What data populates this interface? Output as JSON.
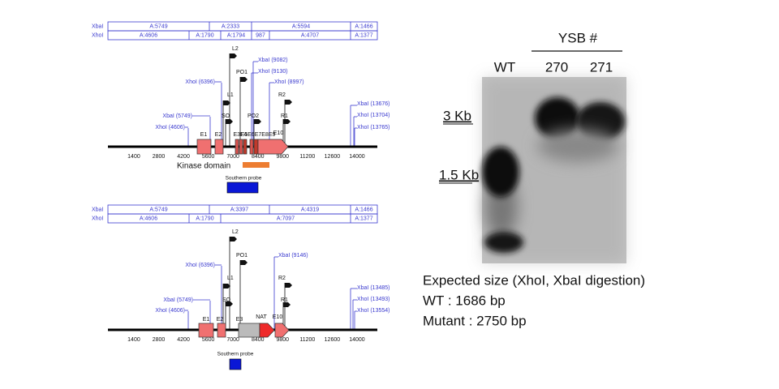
{
  "maps": [
    {
      "restriction_table": {
        "rows": [
          {
            "enzyme": "XbaI",
            "fragments": [
              "A:5749",
              "A:2333",
              "A:5594",
              "A:1466"
            ]
          },
          {
            "enzyme": "XhoI",
            "fragments": [
              "A:4606",
              "A:1790",
              "A:1794",
              "987",
              "A:4707",
              "A:1377"
            ]
          }
        ]
      },
      "sites": [
        "L2",
        "XbaI (9082)",
        "PO1",
        "XhoI (9130)",
        "XhoI (6396)",
        "XhoI (8997)",
        "L1",
        "R2",
        "XbaI (5749)",
        "SO",
        "PO2",
        "R1",
        "XhoI (4606)",
        "XbaI (13676)",
        "XhoI (13704)",
        "XhoI (13765)"
      ],
      "exons": [
        "E1",
        "E2",
        "E3E4",
        "E5E6E7E8E9",
        "E10"
      ],
      "axis_ticks": [
        1400,
        2800,
        4200,
        5600,
        7000,
        8400,
        9800,
        11200,
        12600,
        14000
      ],
      "domain_label": "Kinase domain",
      "probe_label": "Southern probe"
    },
    {
      "restriction_table": {
        "rows": [
          {
            "enzyme": "XbaI",
            "fragments": [
              "A:5749",
              "A:3397",
              "A:4319",
              "A:1466"
            ]
          },
          {
            "enzyme": "XhoI",
            "fragments": [
              "A:4606",
              "A:1790",
              "A:7097",
              "A:1377"
            ]
          }
        ]
      },
      "sites": [
        "L2",
        "PO1",
        "XhoI (6396)",
        "XbaI (9146)",
        "L1",
        "R2",
        "SO",
        "R1",
        "XbaI (5749)",
        "XhoI (4606)",
        "XbaI (13485)",
        "XhoI (13493)",
        "XhoI (13554)"
      ],
      "exons": [
        "E1",
        "E2",
        "E3",
        "NAT",
        "E10"
      ],
      "axis_ticks": [
        1400,
        2800,
        4200,
        5600,
        7000,
        8400,
        9800,
        11200,
        12600,
        14000
      ],
      "probe_label": "Southern probe"
    }
  ],
  "blot": {
    "group_label": "YSB #",
    "lanes": [
      "WT",
      "270",
      "271"
    ],
    "markers": [
      "3 Kb",
      "1.5 Kb"
    ]
  },
  "caption": {
    "title": "Expected size (XhoI, XbaI digestion)",
    "lines": [
      "WT : 1686 bp",
      "Mutant : 2750 bp"
    ]
  }
}
